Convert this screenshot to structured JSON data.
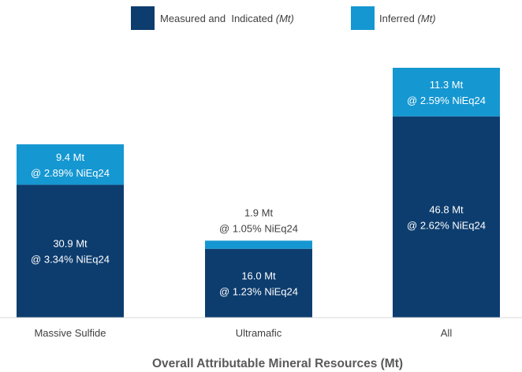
{
  "chart_data": {
    "type": "bar",
    "stacked": true,
    "title": "",
    "xlabel": "Overall Attributable Mineral Resources (Mt)",
    "ylabel": "",
    "categories": [
      "Massive Sulfide",
      "Ultramafic",
      "All"
    ],
    "ylim": [
      0,
      60
    ],
    "grid": false,
    "legend_position": "top",
    "series": [
      {
        "name": "Measured and  Indicated",
        "unit": "(Mt)",
        "color": "#0d3d6e",
        "values": [
          30.9,
          16.0,
          46.8
        ],
        "labels": [
          [
            "30.9 Mt",
            "@ 3.34% NiEq24"
          ],
          [
            "16.0 Mt",
            "@ 1.23% NiEq24"
          ],
          [
            "46.8 Mt",
            "@ 2.62% NiEq24"
          ]
        ]
      },
      {
        "name": "Inferred",
        "unit": "(Mt)",
        "color": "#1597d1",
        "values": [
          9.4,
          1.9,
          11.3
        ],
        "labels": [
          [
            "9.4 Mt",
            "@ 2.89% NiEq24"
          ],
          [
            "1.9 Mt",
            "@ 1.05% NiEq24"
          ],
          [
            "11.3 Mt",
            "@ 2.59% NiEq24"
          ]
        ]
      }
    ]
  }
}
